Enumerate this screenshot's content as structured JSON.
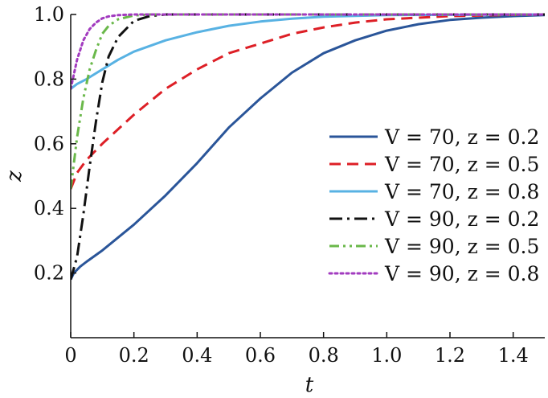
{
  "chart_data": {
    "type": "line",
    "title": "",
    "xlabel": "t",
    "ylabel": "z",
    "xlim": [
      0,
      1.5
    ],
    "ylim": [
      0,
      1.0
    ],
    "xticks": [
      "0",
      "0.2",
      "0.4",
      "0.6",
      "0.8",
      "1.0",
      "1.2",
      "1.4"
    ],
    "yticks": [
      "0.2",
      "0.4",
      "0.6",
      "0.8",
      "1.0"
    ],
    "grid": false,
    "legend_position": "center-right",
    "series": [
      {
        "name": "V = 70,  z = 0.2",
        "color": "#2a5599",
        "dash": "solid",
        "x": [
          0,
          0.01,
          0.03,
          0.05,
          0.1,
          0.2,
          0.3,
          0.4,
          0.5,
          0.6,
          0.7,
          0.8,
          0.9,
          1.0,
          1.1,
          1.2,
          1.3,
          1.4,
          1.5
        ],
        "y": [
          0.18,
          0.2,
          0.22,
          0.235,
          0.27,
          0.35,
          0.44,
          0.54,
          0.65,
          0.74,
          0.82,
          0.88,
          0.92,
          0.95,
          0.97,
          0.983,
          0.99,
          0.995,
          0.998
        ]
      },
      {
        "name": "V = 70,  z = 0.5",
        "color": "#dd1f26",
        "dash": "dashed",
        "x": [
          0,
          0.02,
          0.05,
          0.1,
          0.2,
          0.3,
          0.4,
          0.5,
          0.6,
          0.7,
          0.8,
          0.9,
          1.0,
          1.1,
          1.2,
          1.3,
          1.4,
          1.5
        ],
        "y": [
          0.46,
          0.51,
          0.55,
          0.6,
          0.69,
          0.77,
          0.83,
          0.88,
          0.91,
          0.94,
          0.96,
          0.975,
          0.985,
          0.99,
          0.995,
          0.997,
          0.999,
          1.0
        ]
      },
      {
        "name": "V = 70,  z = 0.8",
        "color": "#58b2e3",
        "dash": "solid",
        "x": [
          0,
          0.02,
          0.05,
          0.1,
          0.15,
          0.2,
          0.3,
          0.4,
          0.5,
          0.6,
          0.7,
          0.8,
          1.0,
          1.2,
          1.5
        ],
        "y": [
          0.77,
          0.785,
          0.8,
          0.83,
          0.86,
          0.885,
          0.92,
          0.945,
          0.965,
          0.978,
          0.987,
          0.993,
          0.998,
          0.999,
          1.0
        ]
      },
      {
        "name": "V = 90,  z = 0.2",
        "color": "#111111",
        "dash": "dashdot",
        "x": [
          0,
          0.02,
          0.04,
          0.06,
          0.08,
          0.1,
          0.12,
          0.15,
          0.2,
          0.25,
          0.3,
          0.4,
          0.6,
          1.0,
          1.5
        ],
        "y": [
          0.18,
          0.25,
          0.38,
          0.53,
          0.67,
          0.79,
          0.87,
          0.93,
          0.98,
          0.995,
          1.0,
          1.0,
          1.0,
          1.0,
          1.0
        ]
      },
      {
        "name": "V = 90,  z = 0.5",
        "color": "#6ab84a",
        "dash": "dashdotdot",
        "x": [
          0,
          0.02,
          0.04,
          0.06,
          0.08,
          0.1,
          0.12,
          0.15,
          0.2,
          0.25,
          0.4,
          0.6,
          1.0,
          1.5
        ],
        "y": [
          0.46,
          0.62,
          0.74,
          0.83,
          0.89,
          0.94,
          0.965,
          0.985,
          0.997,
          1.0,
          1.0,
          1.0,
          1.0,
          1.0
        ]
      },
      {
        "name": "V = 90,  z = 0.8",
        "color": "#a23bbf",
        "dash": "dotted",
        "x": [
          0,
          0.02,
          0.04,
          0.06,
          0.08,
          0.1,
          0.12,
          0.15,
          0.2,
          0.3,
          0.6,
          1.0,
          1.5
        ],
        "y": [
          0.77,
          0.86,
          0.92,
          0.955,
          0.975,
          0.988,
          0.994,
          0.998,
          1.0,
          1.0,
          1.0,
          1.0,
          1.0
        ]
      }
    ]
  }
}
